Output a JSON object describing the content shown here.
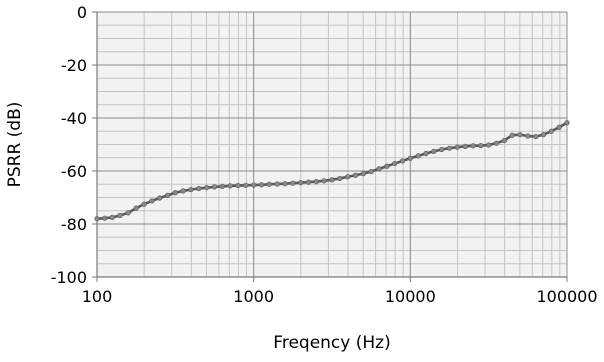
{
  "chart_data": {
    "type": "line",
    "title": "",
    "xlabel": "Freqency (Hz)",
    "ylabel": "PSRR (dB)",
    "xscale": "log",
    "xlim": [
      100,
      100000
    ],
    "ylim": [
      -100,
      0
    ],
    "grid": true,
    "legend": "none",
    "x_ticks": [
      100,
      1000,
      10000,
      100000
    ],
    "x_tick_labels": [
      "100",
      "1000",
      "10000",
      "100000"
    ],
    "y_ticks": [
      0,
      -20,
      -40,
      -60,
      -80,
      -100
    ],
    "y_tick_labels": [
      "0",
      "-20",
      "-40",
      "-60",
      "-80",
      "-100"
    ],
    "series": [
      {
        "color": "#5a5a5a",
        "marker_color": "#8a8a8a",
        "x": [
          100,
          112,
          125,
          140,
          158,
          178,
          200,
          224,
          251,
          282,
          316,
          355,
          398,
          447,
          501,
          562,
          631,
          708,
          794,
          891,
          1000,
          1122,
          1259,
          1413,
          1585,
          1778,
          1995,
          2239,
          2512,
          2818,
          3162,
          3548,
          3981,
          4467,
          5012,
          5623,
          6310,
          7079,
          7943,
          8913,
          10000,
          11220,
          12589,
          14125,
          15849,
          17783,
          19953,
          22387,
          25119,
          28184,
          31623,
          35481,
          39811,
          44668,
          50119,
          56234,
          63096,
          70795,
          79433,
          89125,
          100000
        ],
        "y": [
          -78,
          -77.8,
          -77.5,
          -76.8,
          -75.8,
          -74,
          -72.5,
          -71.3,
          -70.2,
          -69.2,
          -68.2,
          -67.5,
          -67,
          -66.6,
          -66.3,
          -66,
          -65.8,
          -65.6,
          -65.5,
          -65.4,
          -65.3,
          -65.2,
          -65,
          -64.9,
          -64.8,
          -64.6,
          -64.4,
          -64.2,
          -64,
          -63.7,
          -63.3,
          -62.8,
          -62.2,
          -61.6,
          -61,
          -60.2,
          -59.2,
          -58.2,
          -57.2,
          -56.2,
          -55.2,
          -54.3,
          -53.4,
          -52.6,
          -51.9,
          -51.4,
          -51,
          -50.7,
          -50.5,
          -50.4,
          -50.2,
          -49.5,
          -48.5,
          -46.5,
          -46.3,
          -46.8,
          -47,
          -46.3,
          -45,
          -43.5,
          -41.8
        ]
      }
    ]
  }
}
